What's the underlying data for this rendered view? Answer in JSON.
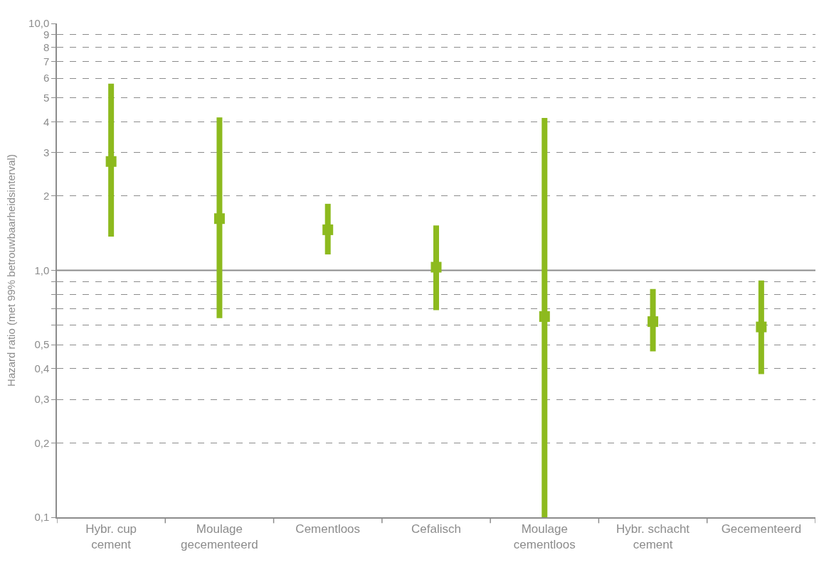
{
  "chart_data": {
    "type": "scatter",
    "ylabel": "Hazard ratio (met 99% betrouwbaarheidsinterval)",
    "categories": [
      "Hybr. cup\ncement",
      "Moulage\ngecementeerd",
      "Cementloos",
      "Cefalisch",
      "Moulage\ncementloos",
      "Hybr. schacht\ncement",
      "Gecementeerd"
    ],
    "series": [
      {
        "color": "#8dba1e",
        "values": [
          2.76,
          1.62,
          1.46,
          1.03,
          0.65,
          0.62,
          0.59
        ],
        "errors": [
          [
            1.37,
            5.7
          ],
          [
            0.64,
            4.16
          ],
          [
            1.16,
            1.86
          ],
          [
            0.69,
            1.52
          ],
          [
            0.1,
            4.14
          ],
          [
            0.47,
            0.84
          ],
          [
            0.38,
            0.91
          ]
        ]
      }
    ],
    "log": "y",
    "ylim": [
      0.1,
      10
    ],
    "yticks": [
      {
        "value": 0.1,
        "label": "0,1"
      },
      {
        "value": 0.2,
        "label": "0,2"
      },
      {
        "value": 0.3,
        "label": "0,3"
      },
      {
        "value": 0.4,
        "label": "0,4"
      },
      {
        "value": 0.5,
        "label": "0,5"
      },
      {
        "value": 0.6,
        "label": null
      },
      {
        "value": 0.7,
        "label": null
      },
      {
        "value": 0.8,
        "label": null
      },
      {
        "value": 0.9,
        "label": null
      },
      {
        "value": 1,
        "label": "1,0"
      },
      2,
      3,
      4,
      5,
      6,
      7,
      8,
      9,
      {
        "value": 10,
        "label": "10,0"
      }
    ],
    "grid": "y",
    "marker": "square",
    "ref_lines": [
      {
        "axis": "y",
        "value": 1,
        "line_style": "solid",
        "color": "#8c8c8c"
      }
    ]
  }
}
